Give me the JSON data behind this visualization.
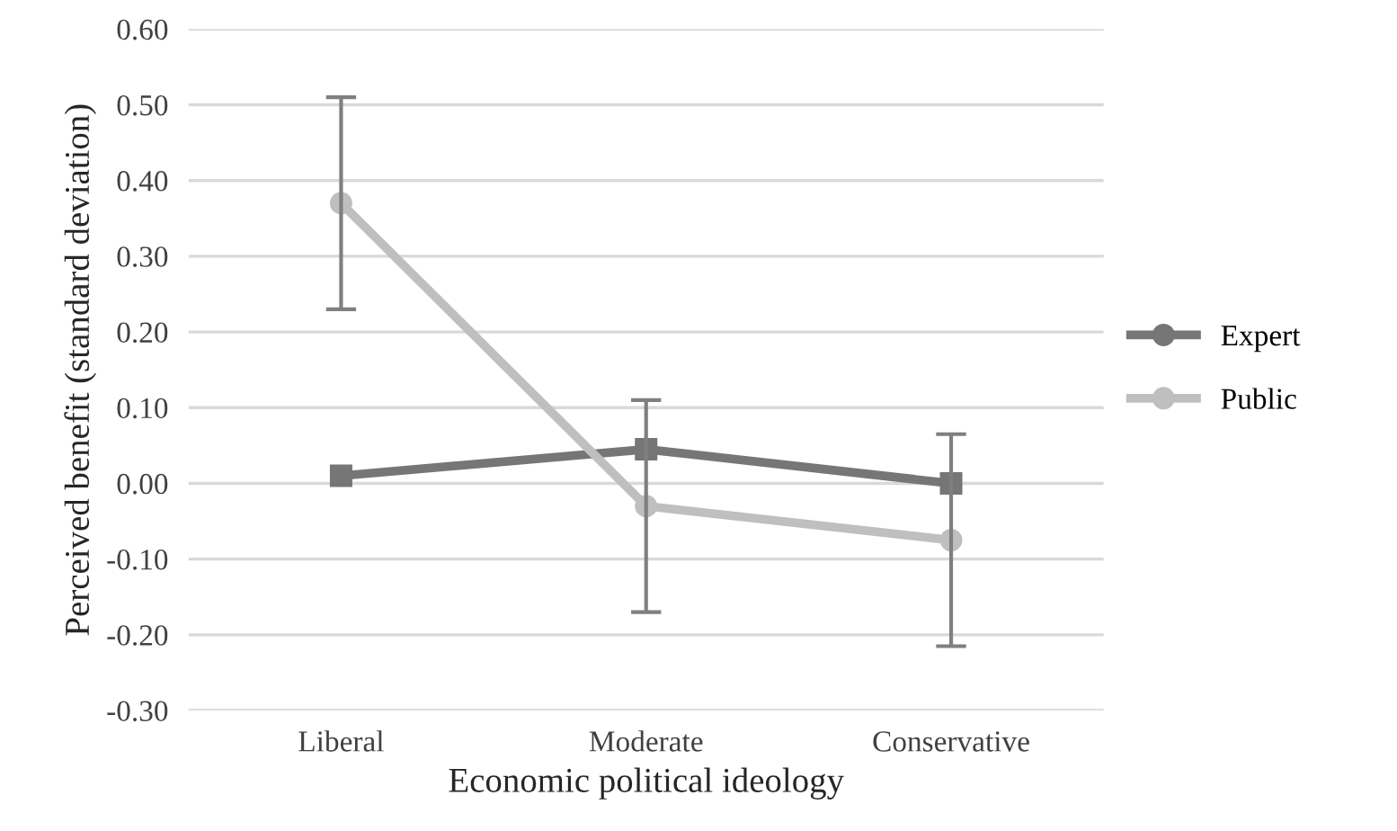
{
  "chart_data": {
    "type": "line",
    "xlabel": "Economic political ideology",
    "ylabel": "Perceived benefit (standard deviation)",
    "categories": [
      "Liberal",
      "Moderate",
      "Conservative"
    ],
    "series": [
      {
        "name": "Expert",
        "color": "#767676",
        "marker": "square",
        "values": [
          0.01,
          0.045,
          0.0
        ]
      },
      {
        "name": "Public",
        "color": "#bfbfbf",
        "marker": "circle",
        "values": [
          0.37,
          -0.03,
          -0.075
        ],
        "errors": [
          0.14,
          0.14,
          0.14
        ]
      }
    ],
    "ylim": [
      -0.3,
      0.6
    ],
    "yticks": [
      {
        "value": -0.3,
        "label": "-0.30"
      },
      {
        "value": -0.2,
        "label": "-0.20"
      },
      {
        "value": -0.1,
        "label": "-0.10"
      },
      {
        "value": 0,
        "label": "0.00"
      },
      {
        "value": 0.1,
        "label": "0.10"
      },
      {
        "value": 0.2,
        "label": "0.20"
      },
      {
        "value": 0.3,
        "label": "0.30"
      },
      {
        "value": 0.4,
        "label": "0.40"
      },
      {
        "value": 0.5,
        "label": "0.50"
      },
      {
        "value": 0.6,
        "label": "0.60"
      }
    ],
    "grid": "y",
    "legend": "right",
    "line_style": "solid"
  }
}
